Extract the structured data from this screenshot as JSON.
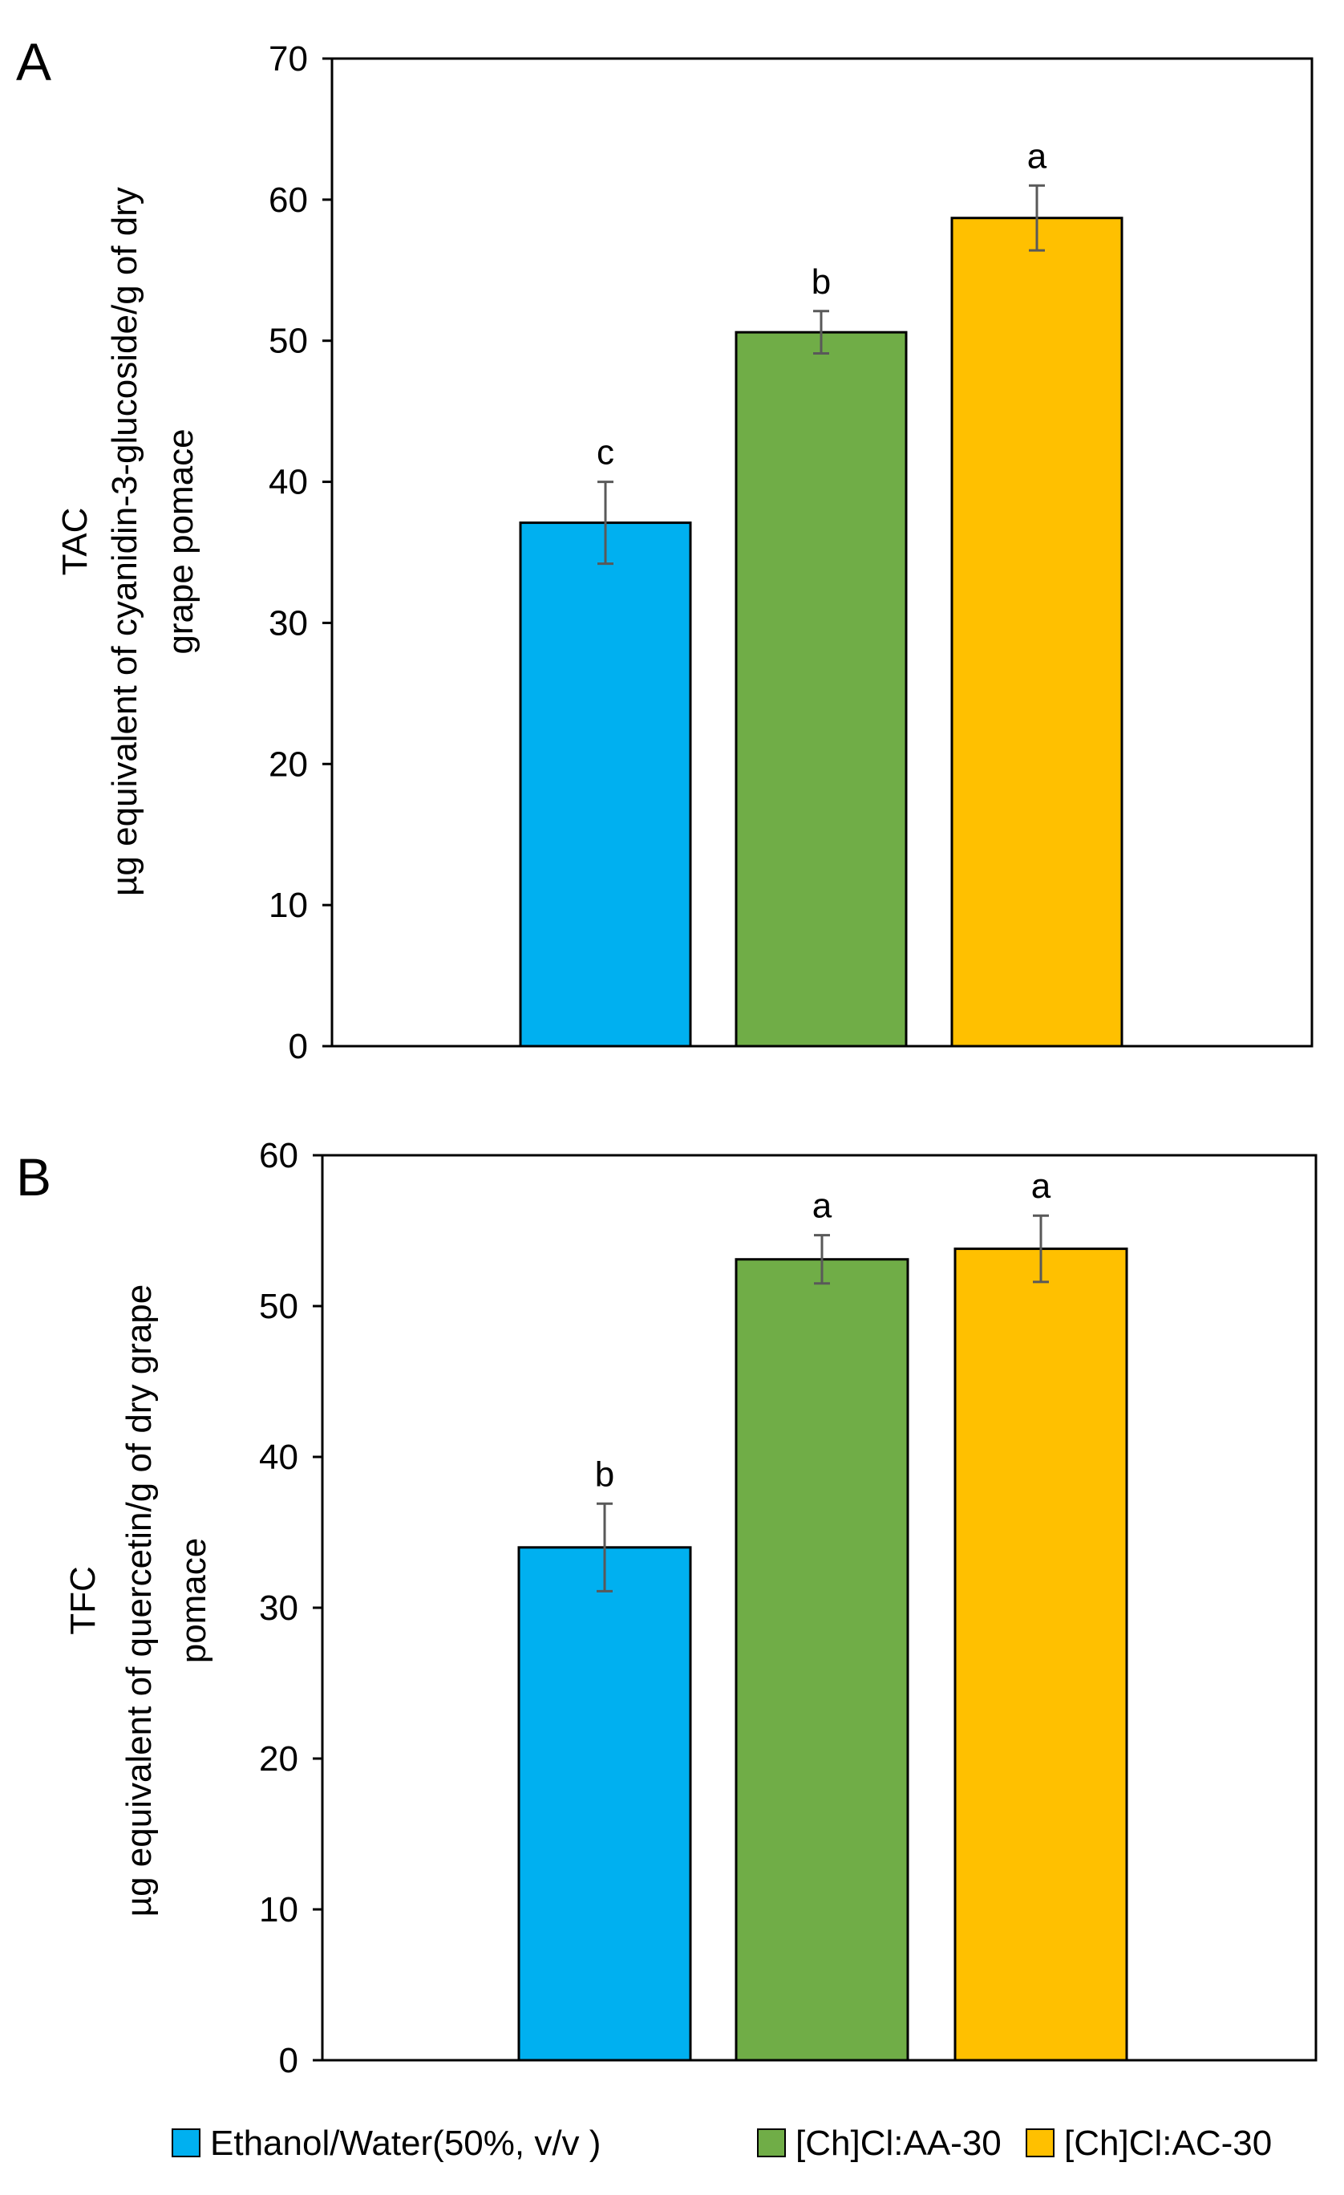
{
  "colors": {
    "series": [
      "#00B0F0",
      "#70AD47",
      "#FFC000"
    ],
    "axis": "#000000",
    "error_bar": "#595959"
  },
  "legend": {
    "placement": "bottom",
    "items": [
      "Ethanol/Water(50%, v/v )",
      "[Ch]Cl:AA-30",
      "[Ch]Cl:AC-30"
    ]
  },
  "chart_data": [
    {
      "type": "bar",
      "panel": "A",
      "ylabel_lines": [
        "TAC",
        "µg equivalent of cyanidin-3-glucoside/g of dry",
        "grape pomace"
      ],
      "ylim": [
        0,
        70
      ],
      "yticks": [
        0,
        10,
        20,
        30,
        40,
        50,
        60,
        70
      ],
      "grid": false,
      "series": [
        {
          "name": "Ethanol/Water(50%, v/v )",
          "value": 37.1,
          "error": 2.9,
          "significance": "c"
        },
        {
          "name": "[Ch]Cl:AA-30",
          "value": 50.6,
          "error": 1.5,
          "significance": "b"
        },
        {
          "name": "[Ch]Cl:AC-30",
          "value": 58.7,
          "error": 2.3,
          "significance": "a"
        }
      ]
    },
    {
      "type": "bar",
      "panel": "B",
      "ylabel_lines": [
        "TFC",
        "µg equivalent of quercetin/g of dry grape",
        "pomace"
      ],
      "ylim": [
        0,
        60
      ],
      "yticks": [
        0,
        10,
        20,
        30,
        40,
        50,
        60
      ],
      "grid": false,
      "series": [
        {
          "name": "Ethanol/Water(50%, v/v )",
          "value": 34.0,
          "error": 2.9,
          "significance": "b"
        },
        {
          "name": "[Ch]Cl:AA-30",
          "value": 53.1,
          "error": 1.6,
          "significance": "a"
        },
        {
          "name": "[Ch]Cl:AC-30",
          "value": 53.8,
          "error": 2.2,
          "significance": "a"
        }
      ]
    }
  ]
}
